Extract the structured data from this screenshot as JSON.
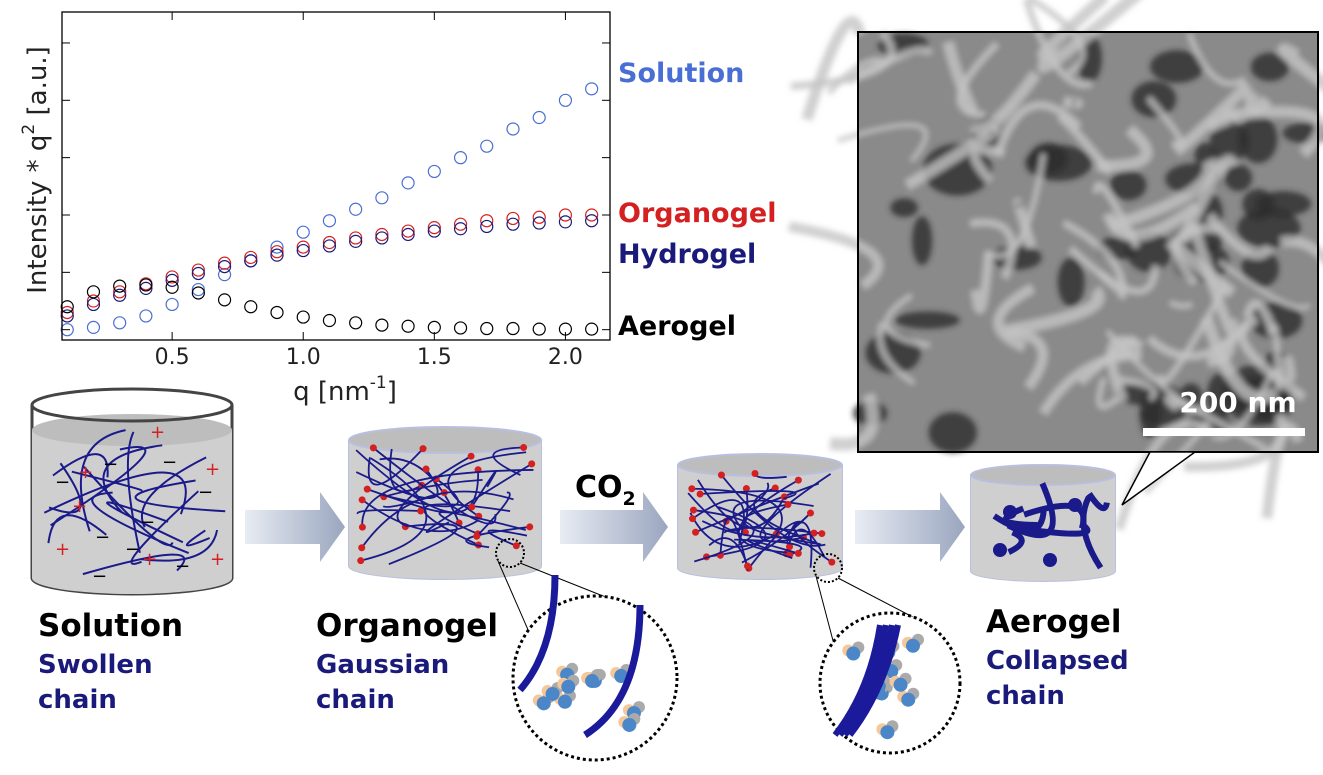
{
  "chart_data": {
    "type": "scatter",
    "x_label": {
      "text": "q [nm",
      "sup": "-1",
      "end": "]"
    },
    "y_label": {
      "text": "Intensity * q",
      "sup": "2",
      "end": " [a.u.]"
    },
    "x": [
      0.1,
      0.2,
      0.3,
      0.4,
      0.5,
      0.6,
      0.7,
      0.8,
      0.9,
      1.0,
      1.1,
      1.2,
      1.3,
      1.4,
      1.5,
      1.6,
      1.7,
      1.8,
      1.9,
      2.0,
      2.1
    ],
    "xlim": [
      0.08,
      2.17
    ],
    "ylim": [
      -0.09,
      2.77
    ],
    "xticks": [
      0.5,
      {
        "value": 1,
        "label": "1.0"
      },
      1.5,
      {
        "value": 2,
        "label": "2.0"
      }
    ],
    "yticks": [
      0,
      0.5,
      1,
      1.5,
      2,
      2.5
    ],
    "series": [
      {
        "name": "Solution",
        "color": "#4a6fd4",
        "values": [
          0.0,
          0.02,
          0.06,
          0.12,
          0.22,
          0.35,
          0.48,
          0.6,
          0.72,
          0.85,
          0.95,
          1.05,
          1.15,
          1.28,
          1.38,
          1.5,
          1.6,
          1.75,
          1.85,
          2.0,
          2.1
        ]
      },
      {
        "name": "Organogel",
        "color": "#d42020",
        "values": [
          0.15,
          0.25,
          0.33,
          0.4,
          0.46,
          0.52,
          0.58,
          0.63,
          0.68,
          0.72,
          0.76,
          0.8,
          0.83,
          0.86,
          0.89,
          0.92,
          0.95,
          0.97,
          0.98,
          1.0,
          1.0
        ]
      },
      {
        "name": "Hydrogel",
        "color": "#1a1a7a",
        "values": [
          0.12,
          0.22,
          0.3,
          0.36,
          0.43,
          0.49,
          0.55,
          0.6,
          0.65,
          0.69,
          0.73,
          0.77,
          0.8,
          0.83,
          0.86,
          0.88,
          0.9,
          0.92,
          0.93,
          0.94,
          0.95
        ]
      },
      {
        "name": "Aerogel",
        "color": "#000000",
        "values": [
          0.2,
          0.33,
          0.38,
          0.39,
          0.37,
          0.32,
          0.26,
          0.2,
          0.15,
          0.11,
          0.08,
          0.06,
          0.04,
          0.03,
          0.02,
          0.015,
          0.01,
          0.01,
          0.005,
          0.005,
          0.005
        ]
      }
    ]
  },
  "image": {
    "scale_bar": "200 nm"
  },
  "process": {
    "reagent": {
      "text": "CO",
      "sub": "2"
    },
    "stages": [
      {
        "name": "Solution",
        "desc": [
          "Swollen",
          "chain"
        ]
      },
      {
        "name": "Organogel",
        "desc": [
          "Gaussian",
          "chain"
        ]
      },
      {
        "name": "Aerogel",
        "desc": [
          "Collapsed",
          "chain"
        ]
      }
    ]
  }
}
